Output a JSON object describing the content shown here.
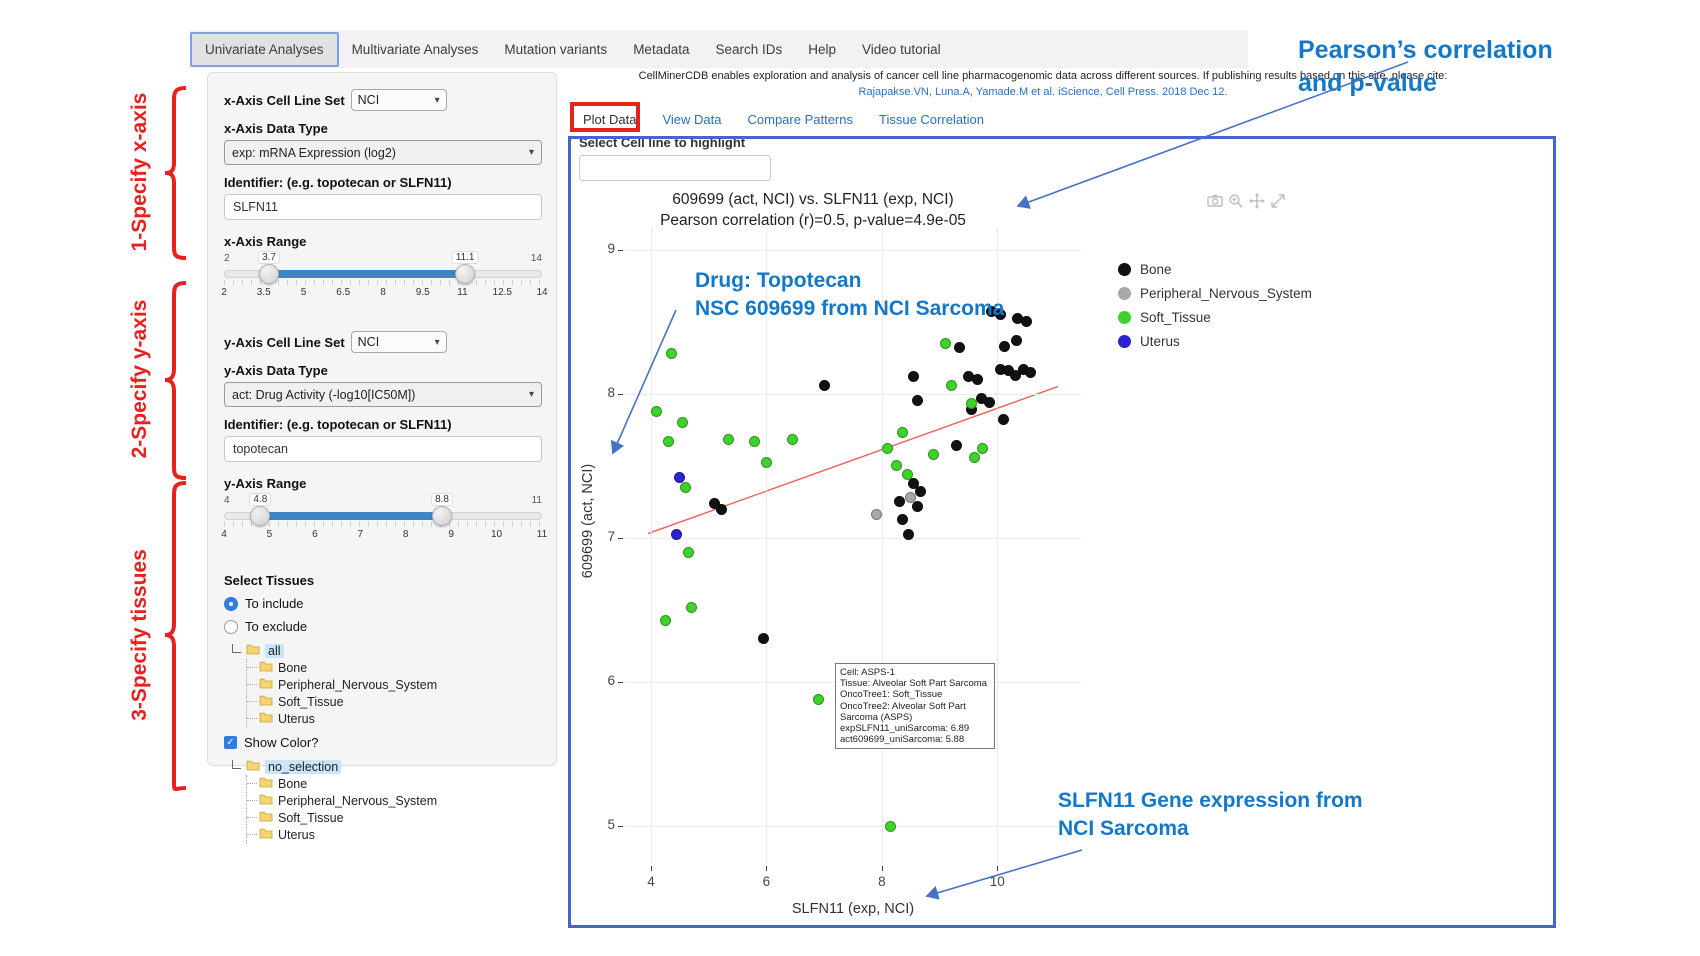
{
  "nav": {
    "tabs": [
      "Univariate Analyses",
      "Multivariate Analyses",
      "Mutation variants",
      "Metadata",
      "Search IDs",
      "Help",
      "Video tutorial"
    ],
    "active_index": 0
  },
  "header": {
    "citation_line1": "CellMinerCDB enables exploration and analysis of cancer cell line pharmacogenomic data across different sources. If publishing results based on this site, please cite:",
    "citation_line2": "Rajapakse.VN, Luna.A, Yamade.M et al. iScience, Cell Press. 2018 Dec 12."
  },
  "subtabs": {
    "items": [
      "Plot Data",
      "View Data",
      "Compare Patterns",
      "Tissue Correlation"
    ],
    "active_index": 0
  },
  "side_annotations": {
    "step1": "1-Specify x-axis",
    "step2": "2-Specify y-axis",
    "step3": "3-Specify tissues"
  },
  "callouts": {
    "pearson_line1": "Pearson’s correlation",
    "pearson_line2": "and p-value",
    "drug_line1": "Drug: Topotecan",
    "drug_line2": "NSC 609699 from NCI Sarcoma",
    "gene_line1": "SLFN11 Gene expression from",
    "gene_line2": "NCI Sarcoma"
  },
  "sidebar": {
    "x_axis": {
      "cell_line_set_label": "x-Axis Cell Line Set",
      "cell_line_set_value": "NCI",
      "data_type_label": "x-Axis Data Type",
      "data_type_value": "exp: mRNA Expression (log2)",
      "identifier_label": "Identifier: (e.g. topotecan or SLFN11)",
      "identifier_value": "SLFN11",
      "range_label": "x-Axis Range",
      "range_min_label": "2",
      "range_max_label": "14",
      "range_low": "3.7",
      "range_high": "11.1",
      "slider_min": 2,
      "slider_max": 14,
      "slider_low": 3.7,
      "slider_high": 11.1,
      "tick_labels": [
        "2",
        "3.5",
        "5",
        "6.5",
        "8",
        "9.5",
        "11",
        "12.5",
        "14"
      ]
    },
    "y_axis": {
      "cell_line_set_label": "y-Axis Cell Line Set",
      "cell_line_set_value": "NCI",
      "data_type_label": "y-Axis Data Type",
      "data_type_value": "act: Drug Activity (-log10[IC50M])",
      "identifier_label": "Identifier: (e.g. topotecan or SLFN11)",
      "identifier_value": "topotecan",
      "range_label": "y-Axis Range",
      "range_min_label": "4",
      "range_max_label": "11",
      "range_low": "4.8",
      "range_high": "8.8",
      "slider_min": 4,
      "slider_max": 11,
      "slider_low": 4.8,
      "slider_high": 8.8,
      "tick_labels": [
        "4",
        "5",
        "6",
        "7",
        "8",
        "9",
        "10",
        "11"
      ]
    },
    "tissues": {
      "title": "Select Tissues",
      "include_label": "To include",
      "exclude_label": "To exclude",
      "include_selected": true,
      "show_color_label": "Show Color?",
      "show_color_checked": true,
      "include_tree": {
        "root": "all",
        "children": [
          "Bone",
          "Peripheral_Nervous_System",
          "Soft_Tissue",
          "Uterus"
        ]
      },
      "color_tree": {
        "root": "no_selection",
        "children": [
          "Bone",
          "Peripheral_Nervous_System",
          "Soft_Tissue",
          "Uterus"
        ]
      }
    }
  },
  "plot": {
    "highlight_label": "Select Cell line to highlight",
    "highlight_value": "",
    "title": "609699 (act, NCI) vs. SLFN11 (exp, NCI)",
    "subtitle": "Pearson correlation (r)=0.5, p-value=4.9e-05",
    "tooltip": {
      "lines": [
        "Cell: ASPS-1",
        "Tissue: Alveolar Soft Part Sarcoma",
        "OncoTree1: Soft_Tissue",
        "OncoTree2: Alveolar Soft Part Sarcoma (ASPS)",
        "expSLFN11_uniSarcoma: 6.89",
        "act609699_uniSarcoma: 5.88"
      ]
    }
  },
  "chart_data": {
    "type": "scatter",
    "title": "609699 (act, NCI) vs. SLFN11 (exp, NCI)",
    "subtitle": "Pearson correlation (r)=0.5, p-value=4.9e-05",
    "xlabel": "SLFN11 (exp, NCI)",
    "ylabel": "609699 (act, NCI)",
    "x_range": [
      3.55,
      11.45
    ],
    "y_range": [
      4.73,
      9.15
    ],
    "x_ticks": [
      4,
      6,
      8,
      10
    ],
    "y_ticks": [
      5,
      6,
      7,
      8,
      9
    ],
    "grid": true,
    "legend_position": "right",
    "trendline": {
      "x1": 3.95,
      "y1": 7.03,
      "x2": 11.05,
      "y2": 8.05,
      "color": "#f05f55"
    },
    "series": [
      {
        "name": "Bone",
        "color": "#111111",
        "points": [
          [
            7.0,
            8.06
          ],
          [
            8.55,
            8.12
          ],
          [
            9.35,
            8.32
          ],
          [
            9.9,
            8.57
          ],
          [
            10.05,
            8.55
          ],
          [
            10.35,
            8.52
          ],
          [
            10.5,
            8.5
          ],
          [
            10.12,
            8.33
          ],
          [
            10.33,
            8.37
          ],
          [
            10.05,
            8.17
          ],
          [
            10.2,
            8.16
          ],
          [
            10.32,
            8.13
          ],
          [
            10.45,
            8.17
          ],
          [
            10.58,
            8.15
          ],
          [
            9.5,
            8.12
          ],
          [
            9.65,
            8.1
          ],
          [
            9.72,
            7.97
          ],
          [
            9.87,
            7.94
          ],
          [
            9.55,
            7.89
          ],
          [
            10.1,
            7.82
          ],
          [
            9.3,
            7.64
          ],
          [
            8.62,
            7.95
          ],
          [
            8.55,
            7.38
          ],
          [
            8.67,
            7.32
          ],
          [
            8.3,
            7.25
          ],
          [
            8.62,
            7.22
          ],
          [
            8.35,
            7.13
          ],
          [
            8.47,
            7.02
          ],
          [
            5.1,
            7.24
          ],
          [
            5.22,
            7.2
          ],
          [
            5.95,
            6.3
          ]
        ]
      },
      {
        "name": "Peripheral_Nervous_System",
        "color": "#a8a8a8",
        "points": [
          [
            7.9,
            7.16
          ],
          [
            8.5,
            7.28
          ]
        ]
      },
      {
        "name": "Soft_Tissue",
        "color": "#3ed32b",
        "points": [
          [
            4.35,
            8.28
          ],
          [
            4.1,
            7.88
          ],
          [
            4.55,
            7.8
          ],
          [
            4.3,
            7.67
          ],
          [
            5.35,
            7.68
          ],
          [
            5.8,
            7.67
          ],
          [
            6.45,
            7.68
          ],
          [
            6.0,
            7.52
          ],
          [
            4.6,
            7.35
          ],
          [
            4.65,
            6.9
          ],
          [
            4.7,
            6.52
          ],
          [
            4.25,
            6.43
          ],
          [
            6.9,
            5.88
          ],
          [
            8.15,
            5.0
          ],
          [
            9.1,
            8.35
          ],
          [
            9.2,
            8.06
          ],
          [
            9.55,
            7.93
          ],
          [
            8.35,
            7.73
          ],
          [
            8.1,
            7.62
          ],
          [
            8.9,
            7.58
          ],
          [
            9.75,
            7.62
          ],
          [
            8.25,
            7.5
          ],
          [
            8.45,
            7.44
          ],
          [
            9.6,
            7.56
          ]
        ]
      },
      {
        "name": "Uterus",
        "color": "#2b23cf",
        "points": [
          [
            4.5,
            7.42
          ],
          [
            4.45,
            7.02
          ]
        ]
      }
    ]
  }
}
